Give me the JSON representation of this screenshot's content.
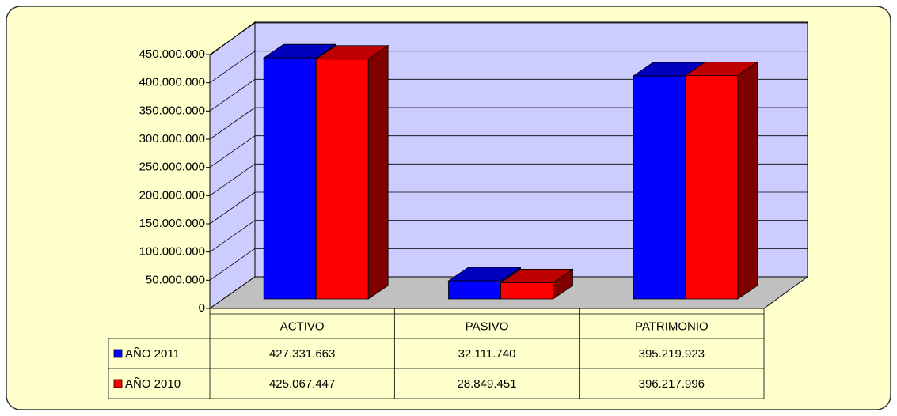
{
  "chart_data": {
    "type": "bar3d",
    "categories": [
      "ACTIVO",
      "PASIVO",
      "PATRIMONIO"
    ],
    "series": [
      {
        "name": "AÑO 2011",
        "color": "#0000ff",
        "values": [
          427331663,
          32111740,
          395219923
        ],
        "value_labels": [
          "427.331.663",
          "32.111.740",
          "395.219.923"
        ]
      },
      {
        "name": "AÑO 2010",
        "color": "#ff0000",
        "values": [
          425067447,
          28849451,
          396217996
        ],
        "value_labels": [
          "425.067.447",
          "28.849.451",
          "396.217.996"
        ]
      }
    ],
    "ylim": [
      0,
      450000000
    ],
    "yticks": [
      {
        "value": 0,
        "label": "0"
      },
      {
        "value": 50000000,
        "label": "50.000.000"
      },
      {
        "value": 100000000,
        "label": "100.000.000"
      },
      {
        "value": 150000000,
        "label": "150.000.000"
      },
      {
        "value": 200000000,
        "label": "200.000.000"
      },
      {
        "value": 250000000,
        "label": "250.000.000"
      },
      {
        "value": 300000000,
        "label": "300.000.000"
      },
      {
        "value": 350000000,
        "label": "350.000.000"
      },
      {
        "value": 400000000,
        "label": "400.000.000"
      },
      {
        "value": 450000000,
        "label": "450.000.000"
      }
    ],
    "grid": true
  }
}
